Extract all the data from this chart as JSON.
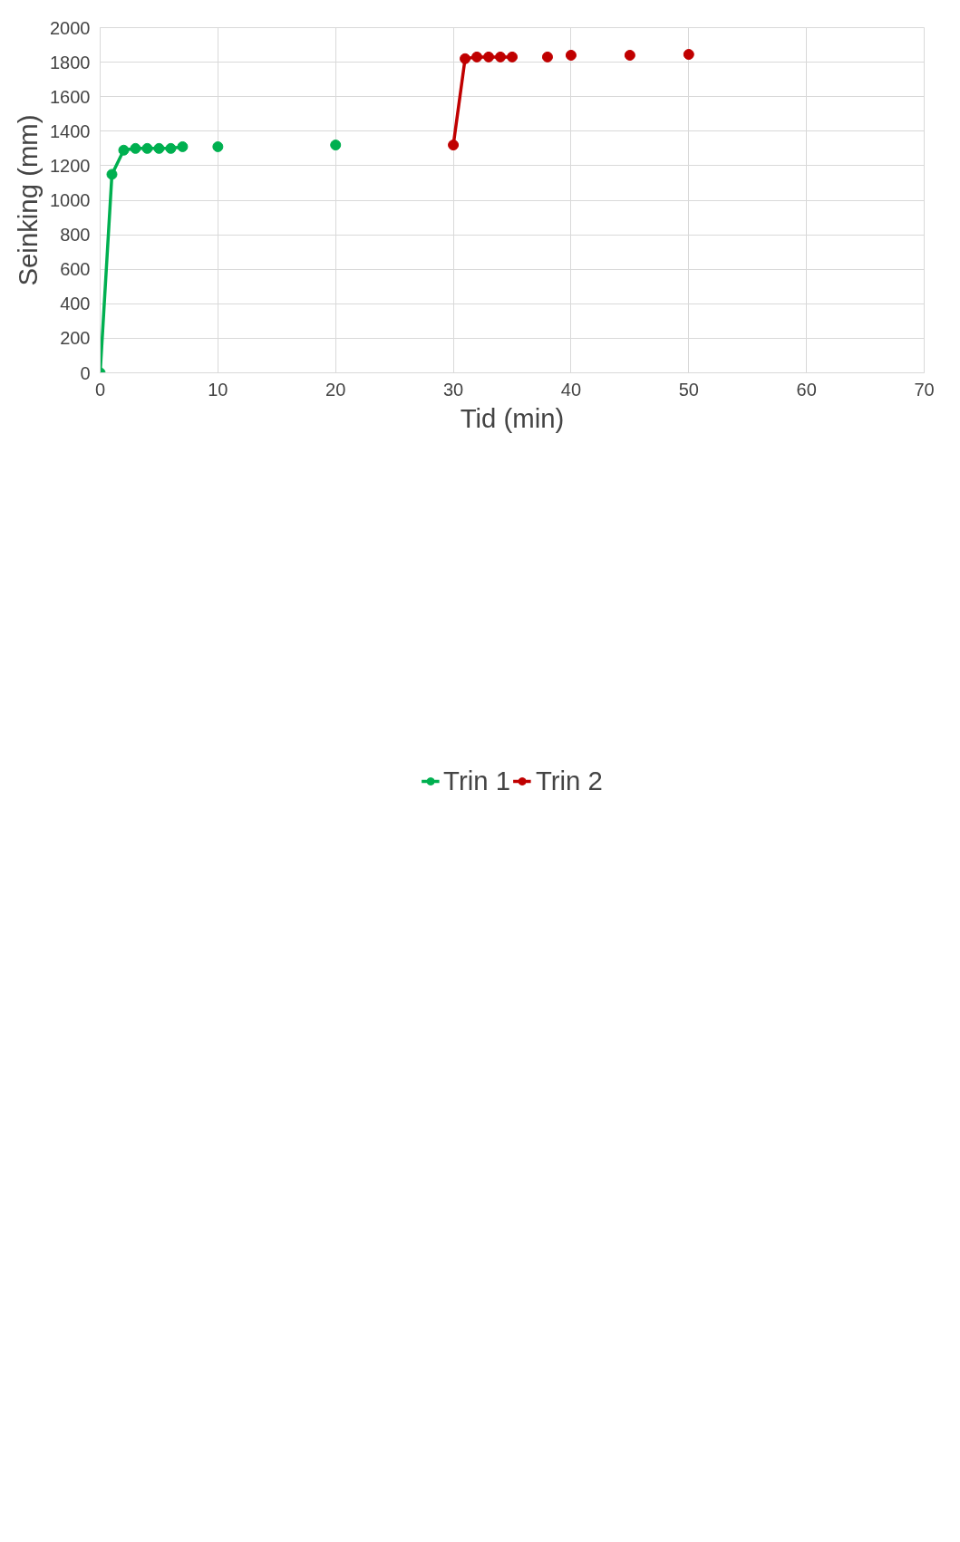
{
  "chart_data": {
    "type": "line",
    "xlabel": "Tid (min)",
    "ylabel": "Seinking (mm)",
    "xlim": [
      0,
      70
    ],
    "xticks": [
      0,
      10,
      20,
      30,
      40,
      50,
      60,
      70
    ],
    "ylim": [
      0,
      2000
    ],
    "yticks": [
      0,
      200,
      400,
      600,
      800,
      1000,
      1200,
      1400,
      1600,
      1800,
      2000
    ],
    "grid": true,
    "legend": "bottom",
    "marker": "circle",
    "line_style": "solid",
    "series": [
      {
        "name": "Trin 1",
        "color": "#00b050",
        "x": [
          0,
          1,
          2,
          3,
          4,
          5,
          6,
          7,
          8,
          9,
          10,
          11,
          12,
          13,
          14,
          15,
          16,
          17,
          18,
          19,
          20
        ],
        "values": [
          0,
          1150,
          1290,
          1300,
          1300,
          1300,
          1300,
          1310,
          null,
          null,
          1310,
          null,
          null,
          null,
          null,
          null,
          null,
          null,
          null,
          null,
          1320
        ]
      },
      {
        "name": "Trin 2",
        "color": "#c00000",
        "x": [
          30,
          31,
          32,
          33,
          34,
          35,
          36,
          37,
          38,
          39,
          40,
          41,
          42,
          43,
          44,
          45,
          46,
          47,
          48,
          49,
          50
        ],
        "values": [
          1320,
          1820,
          1830,
          1830,
          1830,
          1830,
          null,
          null,
          1830,
          null,
          1840,
          null,
          null,
          null,
          null,
          1840,
          null,
          null,
          null,
          null,
          1845
        ]
      }
    ]
  }
}
